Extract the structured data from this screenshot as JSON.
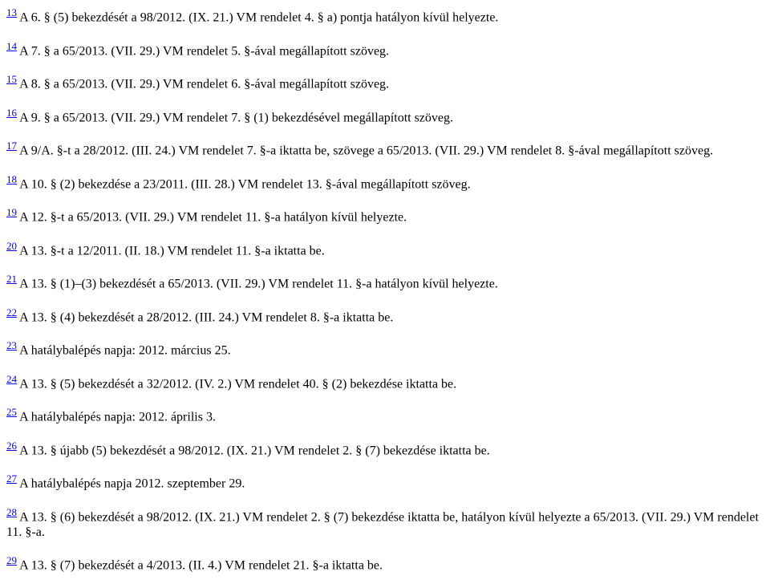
{
  "footnotes": [
    {
      "n": "13",
      "text": " A 6. § (5) bekezdését a 98/2012. (IX. 21.) VM rendelet 4. § a) pontja hatályon kívül helyezte."
    },
    {
      "n": "14",
      "text": " A 7. § a 65/2013. (VII. 29.) VM rendelet 5. §-ával megállapított szöveg."
    },
    {
      "n": "15",
      "text": " A 8. § a 65/2013. (VII. 29.) VM rendelet 6. §-ával megállapított szöveg."
    },
    {
      "n": "16",
      "text": " A 9. § a 65/2013. (VII. 29.) VM rendelet 7. § (1) bekezdésével megállapított szöveg."
    },
    {
      "n": "17",
      "text": " A 9/A. §-t a 28/2012. (III. 24.) VM rendelet 7. §-a iktatta be, szövege a 65/2013. (VII. 29.) VM rendelet 8. §-ával megállapított szöveg."
    },
    {
      "n": "18",
      "text": " A 10. § (2) bekezdése a 23/2011. (III. 28.) VM rendelet 13. §-ával megállapított szöveg."
    },
    {
      "n": "19",
      "text": " A 12. §-t a 65/2013. (VII. 29.) VM rendelet 11. §-a hatályon kívül helyezte."
    },
    {
      "n": "20",
      "text": " A 13. §-t a 12/2011. (II. 18.) VM rendelet 11. §-a iktatta be."
    },
    {
      "n": "21",
      "text": " A 13. § (1)–(3) bekezdését a 65/2013. (VII. 29.) VM rendelet 11. §-a hatályon kívül helyezte."
    },
    {
      "n": "22",
      "text": " A 13. § (4) bekezdését a 28/2012. (III. 24.) VM rendelet 8. §-a iktatta be."
    },
    {
      "n": "23",
      "text": " A hatálybalépés napja: 2012. március 25."
    },
    {
      "n": "24",
      "text": " A 13. § (5) bekezdését a 32/2012. (IV. 2.) VM rendelet 40. § (2) bekezdése iktatta be."
    },
    {
      "n": "25",
      "text": " A hatálybalépés napja: 2012. április 3."
    },
    {
      "n": "26",
      "text": " A 13. § újabb (5) bekezdését a 98/2012. (IX. 21.) VM rendelet 2. § (7) bekezdése iktatta be."
    },
    {
      "n": "27",
      "text": " A hatálybalépés napja 2012. szeptember 29."
    },
    {
      "n": "28",
      "text": " A 13. § (6) bekezdését a 98/2012. (IX. 21.) VM rendelet 2. § (7) bekezdése iktatta be, hatályon kívül helyezte a 65/2013. (VII. 29.) VM rendelet 11. §-a."
    },
    {
      "n": "29",
      "text": " A 13. § (7) bekezdését a 4/2013. (II. 4.) VM rendelet 21. §-a iktatta be."
    }
  ]
}
